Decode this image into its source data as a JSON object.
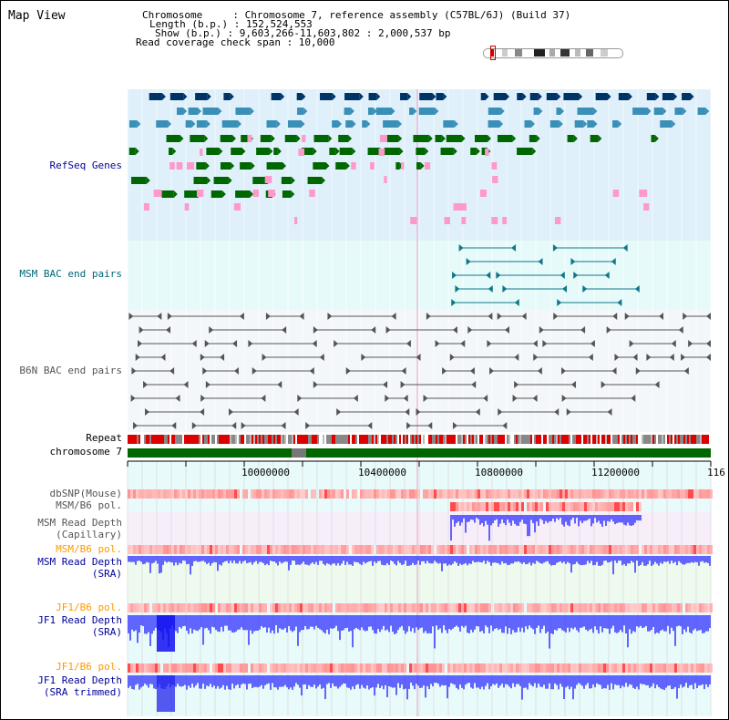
{
  "title": "Map View",
  "info": {
    "chromosome_line": "Chromosome     : Chromosome 7, reference assembly (C57BL/6J) (Build 37)",
    "length_line": "Length (b.p.) : 152,524,553",
    "show_line": "Show (b.p.) : 9,603,266-11,603,802 : 2,000,537 bp",
    "read_span_line": "Read coverage check span : 10,000"
  },
  "tracks": {
    "refseq": "RefSeq Genes",
    "msm_bac": "MSM BAC end pairs",
    "b6n_bac": "B6N BAC end pairs",
    "repeat": "Repeat",
    "chromosome": "chromosome 7",
    "dbsnp": "dbSNP(Mouse)",
    "msm_b6_pol_1": "MSM/B6 pol.",
    "msm_depth_cap_1": "MSM Read Depth",
    "msm_depth_cap_2": "(Capillary)",
    "msm_b6_pol_2": "MSM/B6 pol.",
    "msm_depth_sra_1": "MSM Read Depth",
    "msm_depth_sra_2": "(SRA)",
    "jf1_b6_pol_1": "JF1/B6 pol.",
    "jf1_depth_sra_1": "JF1 Read Depth",
    "jf1_depth_sra_2": "(SRA)",
    "jf1_b6_pol_2": "JF1/B6 pol.",
    "jf1_depth_trim_1": "JF1 Read Depth",
    "jf1_depth_trim_2": "(SRA trimmed)"
  },
  "axis": {
    "ticks": [
      "10000000",
      "10400000",
      "10800000",
      "11200000",
      "116"
    ]
  },
  "colors": {
    "gene_dark": "#003366",
    "gene_mid": "#3a8fb7",
    "gene_green": "#006600",
    "gene_pink": "#ff99cc",
    "msm_bac": "#117788",
    "b6n_bac": "#555555",
    "repeat_red": "#dd0000",
    "chrom_green": "#006600",
    "depth_blue": "#3333ff",
    "pol_red": "#ff0000",
    "label_blue": "#000099",
    "label_orange": "#ff9900",
    "label_teal": "#006677",
    "label_gray": "#555555"
  }
}
